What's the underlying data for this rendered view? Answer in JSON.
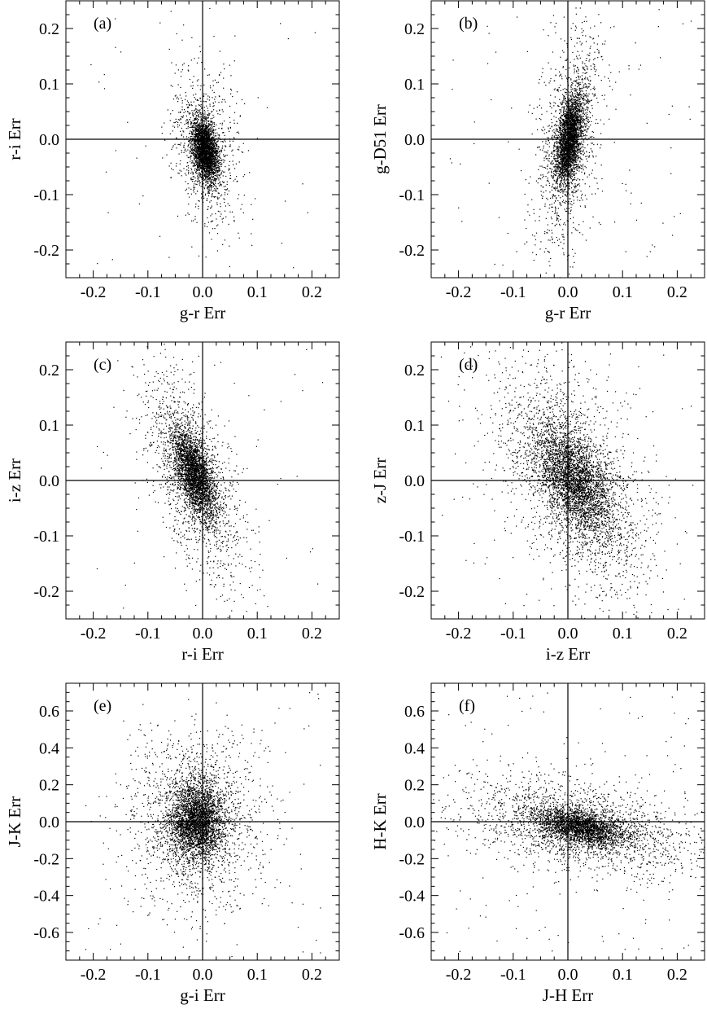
{
  "figure": {
    "panels_count": 6
  },
  "chart_data": [
    {
      "type": "scatter",
      "panel_label": "(a)",
      "xlabel": "g-r Err",
      "ylabel": "r-i Err",
      "xlim": [
        -0.25,
        0.25
      ],
      "ylim": [
        -0.25,
        0.25
      ],
      "xticks": [
        -0.2,
        -0.1,
        0.0,
        0.1,
        0.2
      ],
      "yticks": [
        -0.2,
        -0.1,
        0.0,
        0.1,
        0.2
      ],
      "xtick_labels": [
        "-0.2",
        "-0.1",
        "0.0",
        "0.1",
        "0.2"
      ],
      "ytick_labels": [
        "-0.2",
        "-0.1",
        "0.0",
        "0.1",
        "0.2"
      ],
      "reference_lines": {
        "x": 0.0,
        "y": 0.0
      },
      "cloud": {
        "n_core": 2600,
        "n_halo": 900,
        "n_outlier": 50,
        "cx": 0.005,
        "cy": -0.02,
        "sx": 0.012,
        "sy": 0.028,
        "rho": -0.35,
        "halo_scale": 2.6,
        "outlier_spread": 0.22
      },
      "color": "#000000"
    },
    {
      "type": "scatter",
      "panel_label": "(b)",
      "xlabel": "g-r Err",
      "ylabel": "g-D51 Err",
      "xlim": [
        -0.25,
        0.25
      ],
      "ylim": [
        -0.25,
        0.25
      ],
      "xticks": [
        -0.2,
        -0.1,
        0.0,
        0.1,
        0.2
      ],
      "yticks": [
        -0.2,
        -0.1,
        0.0,
        0.1,
        0.2
      ],
      "xtick_labels": [
        "-0.2",
        "-0.1",
        "0.0",
        "0.1",
        "0.2"
      ],
      "ytick_labels": [
        "-0.2",
        "-0.1",
        "0.0",
        "0.1",
        "0.2"
      ],
      "reference_lines": {
        "x": 0.0,
        "y": 0.0
      },
      "cloud": {
        "n_core": 2500,
        "n_halo": 1300,
        "n_outlier": 90,
        "cx": 0.003,
        "cy": 0.0,
        "sx": 0.012,
        "sy": 0.04,
        "rho": 0.45,
        "halo_scale": 2.4,
        "outlier_spread": 0.23
      },
      "color": "#000000"
    },
    {
      "type": "scatter",
      "panel_label": "(c)",
      "xlabel": "r-i Err",
      "ylabel": "i-z Err",
      "xlim": [
        -0.25,
        0.25
      ],
      "ylim": [
        -0.25,
        0.25
      ],
      "xticks": [
        -0.2,
        -0.1,
        0.0,
        0.1,
        0.2
      ],
      "yticks": [
        -0.2,
        -0.1,
        0.0,
        0.1,
        0.2
      ],
      "xtick_labels": [
        "-0.2",
        "-0.1",
        "0.0",
        "0.1",
        "0.2"
      ],
      "ytick_labels": [
        "-0.2",
        "-0.1",
        "0.0",
        "0.1",
        "0.2"
      ],
      "reference_lines": {
        "x": 0.0,
        "y": 0.0
      },
      "cloud": {
        "n_core": 2500,
        "n_halo": 1500,
        "n_outlier": 60,
        "cx": -0.015,
        "cy": 0.01,
        "sx": 0.02,
        "sy": 0.04,
        "rho": -0.6,
        "halo_scale": 2.3,
        "outlier_spread": 0.22
      },
      "color": "#000000"
    },
    {
      "type": "scatter",
      "panel_label": "(d)",
      "xlabel": "i-z Err",
      "ylabel": "z-J Err",
      "xlim": [
        -0.25,
        0.25
      ],
      "ylim": [
        -0.25,
        0.25
      ],
      "xticks": [
        -0.2,
        -0.1,
        0.0,
        0.1,
        0.2
      ],
      "yticks": [
        -0.2,
        -0.1,
        0.0,
        0.1,
        0.2
      ],
      "xtick_labels": [
        "-0.2",
        "-0.1",
        "0.0",
        "0.1",
        "0.2"
      ],
      "ytick_labels": [
        "-0.2",
        "-0.1",
        "0.0",
        "0.1",
        "0.2"
      ],
      "reference_lines": {
        "x": 0.0,
        "y": 0.0
      },
      "cloud": {
        "n_core": 2600,
        "n_halo": 2200,
        "n_outlier": 120,
        "cx": 0.01,
        "cy": 0.0,
        "sx": 0.035,
        "sy": 0.05,
        "rho": -0.55,
        "halo_scale": 2.0,
        "outlier_spread": 0.23
      },
      "color": "#000000"
    },
    {
      "type": "scatter",
      "panel_label": "(e)",
      "xlabel": "g-i Err",
      "ylabel": "J-K Err",
      "xlim": [
        -0.25,
        0.25
      ],
      "ylim": [
        -0.75,
        0.75
      ],
      "xticks": [
        -0.2,
        -0.1,
        0.0,
        0.1,
        0.2
      ],
      "yticks": [
        -0.6,
        -0.4,
        -0.2,
        0.0,
        0.2,
        0.4,
        0.6
      ],
      "xtick_labels": [
        "-0.2",
        "-0.1",
        "0.0",
        "0.1",
        "0.2"
      ],
      "ytick_labels": [
        "-0.6",
        "-0.4",
        "-0.2",
        "0.0",
        "0.2",
        "0.4",
        "0.6"
      ],
      "reference_lines": {
        "x": 0.0,
        "y": 0.0
      },
      "cloud": {
        "n_core": 2800,
        "n_halo": 1700,
        "n_outlier": 80,
        "cx": -0.01,
        "cy": 0.0,
        "sx": 0.025,
        "sy": 0.1,
        "rho": 0.0,
        "halo_scale": 2.4,
        "outlier_spread": 0.22
      },
      "color": "#000000"
    },
    {
      "type": "scatter",
      "panel_label": "(f)",
      "xlabel": "J-H Err",
      "ylabel": "H-K Err",
      "xlim": [
        -0.25,
        0.25
      ],
      "ylim": [
        -0.75,
        0.75
      ],
      "xticks": [
        -0.2,
        -0.1,
        0.0,
        0.1,
        0.2
      ],
      "yticks": [
        -0.6,
        -0.4,
        -0.2,
        0.0,
        0.2,
        0.4,
        0.6
      ],
      "xtick_labels": [
        "-0.2",
        "-0.1",
        "0.0",
        "0.1",
        "0.2"
      ],
      "ytick_labels": [
        "-0.6",
        "-0.4",
        "-0.2",
        "0.0",
        "0.2",
        "0.4",
        "0.6"
      ],
      "reference_lines": {
        "x": 0.0,
        "y": 0.0
      },
      "cloud": {
        "n_core": 2200,
        "n_halo": 2000,
        "n_outlier": 150,
        "cx": 0.025,
        "cy": -0.03,
        "sx": 0.04,
        "sy": 0.05,
        "rho": -0.4,
        "halo_scale": 2.6,
        "outlier_spread": 0.23
      },
      "color": "#000000"
    }
  ]
}
